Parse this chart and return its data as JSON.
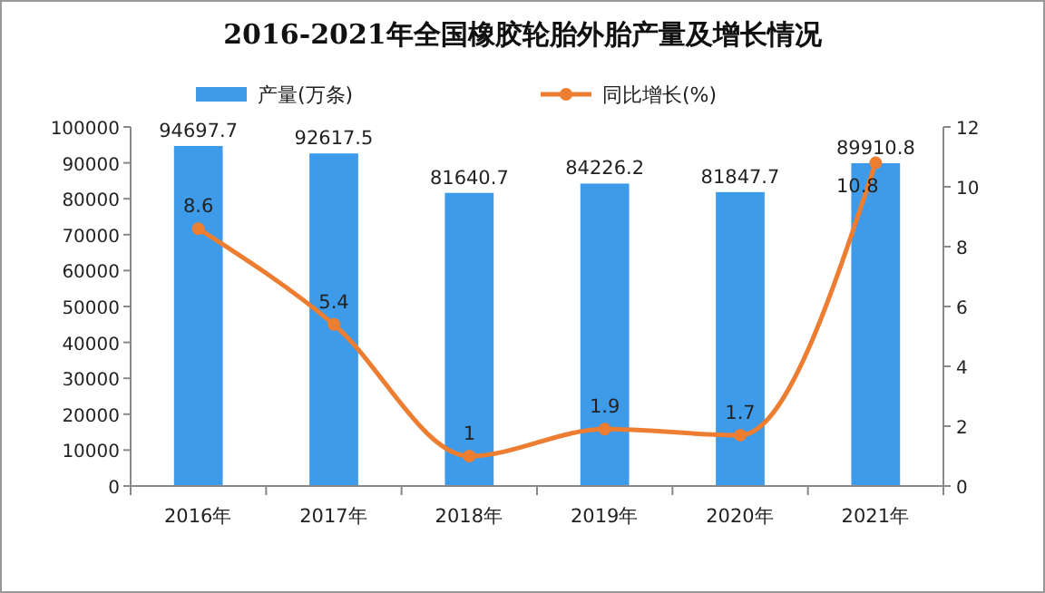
{
  "chart_data": {
    "type": "bar",
    "title": "2016-2021年全国橡胶轮胎外胎产量及增长情况",
    "categories": [
      "2016年",
      "2017年",
      "2018年",
      "2019年",
      "2020年",
      "2021年"
    ],
    "series": [
      {
        "name": "产量(万条)",
        "color": "#3d9be9",
        "values": [
          94697.7,
          92617.5,
          81640.7,
          84226.2,
          81847.7,
          89910.8
        ]
      },
      {
        "name": "同比增长(%)",
        "type": "line",
        "axis": "y2",
        "color": "#ed7d31",
        "marker": "circle",
        "values": [
          8.6,
          5.4,
          1,
          1.9,
          1.7,
          10.8
        ]
      }
    ],
    "ylim": [
      0,
      100000
    ],
    "yticks": [
      0,
      10000,
      20000,
      30000,
      40000,
      50000,
      60000,
      70000,
      80000,
      90000,
      100000
    ],
    "y2lim": [
      0,
      12
    ],
    "y2ticks": [
      0,
      2,
      4,
      6,
      8,
      10,
      12
    ],
    "data_labels": true,
    "legend": "top",
    "grid": false
  }
}
